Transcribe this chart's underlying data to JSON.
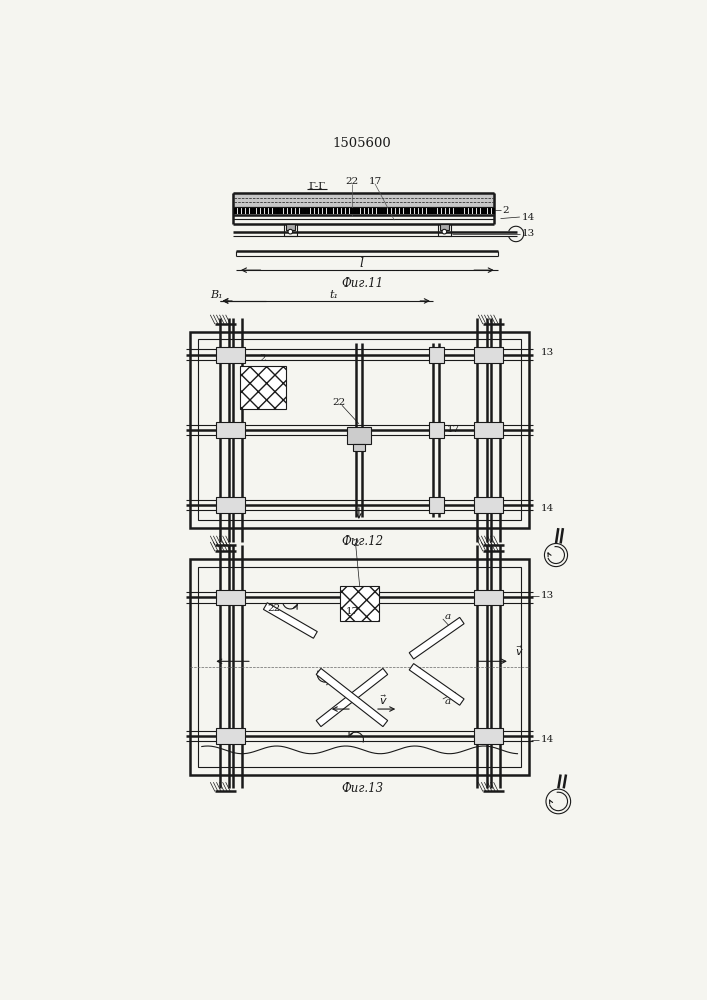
{
  "title": "1505600",
  "fig11_label": "Фиг.11",
  "fig12_label": "Фиг.12",
  "fig13_label": "Фиг.13",
  "bg_color": "#f5f5f0",
  "line_color": "#1a1a1a",
  "lw": 0.8,
  "lw_thick": 1.8,
  "lw_thin": 0.5
}
